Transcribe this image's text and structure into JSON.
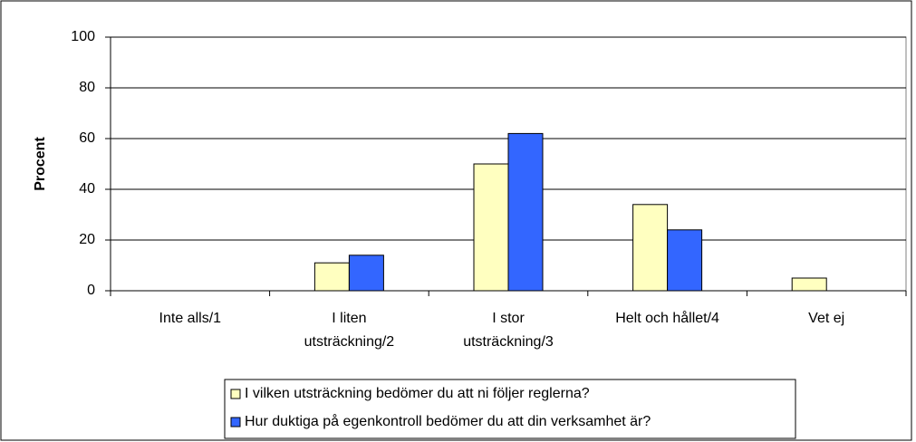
{
  "chart_data": {
    "type": "bar",
    "categories": [
      "Inte alls/1",
      "I liten\nutsträckning/2",
      "I stor\nutsträckning/3",
      "Helt och hållet/4",
      "Vet ej"
    ],
    "series": [
      {
        "name": "I vilken utsträckning bedömer du att ni följer reglerna?",
        "color": "#ffffc0",
        "values": [
          0,
          11,
          50,
          34,
          5
        ]
      },
      {
        "name": "Hur duktiga på egenkontroll bedömer du att din verksamhet är?",
        "color": "#3366ff",
        "values": [
          0,
          14,
          62,
          24,
          0
        ]
      }
    ],
    "ylabel": "Procent",
    "ylim": [
      0,
      100
    ],
    "yticks": [
      0,
      20,
      40,
      60,
      80,
      100
    ],
    "grid": true,
    "legend": "bottom"
  }
}
